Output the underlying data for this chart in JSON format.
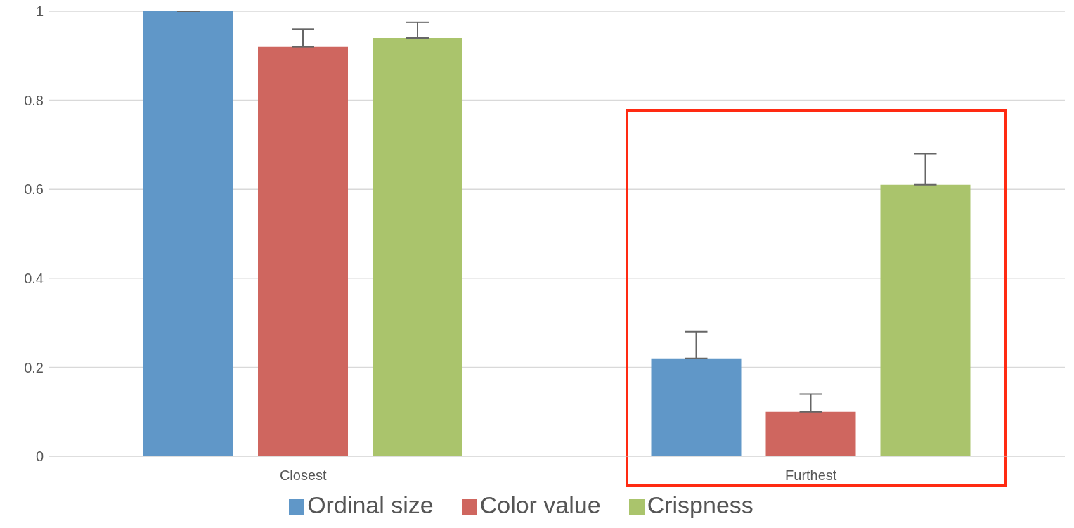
{
  "chart_data": {
    "type": "bar",
    "categories": [
      "Closest",
      "Furthest"
    ],
    "series": [
      {
        "name": "Ordinal size",
        "color": "#6097c8",
        "values": [
          1.0,
          0.22
        ],
        "errors": [
          0,
          0.06
        ]
      },
      {
        "name": "Color value",
        "color": "#cf665f",
        "values": [
          0.92,
          0.1
        ],
        "errors": [
          0.04,
          0.04
        ]
      },
      {
        "name": "Crispness",
        "color": "#aac46c",
        "values": [
          0.94,
          0.61
        ],
        "errors": [
          0.035,
          0.07
        ]
      }
    ],
    "ylim": [
      0,
      1
    ],
    "yticks": [
      0,
      0.2,
      0.4,
      0.6,
      0.8,
      1
    ],
    "grid": "y",
    "legend": "bottom"
  }
}
